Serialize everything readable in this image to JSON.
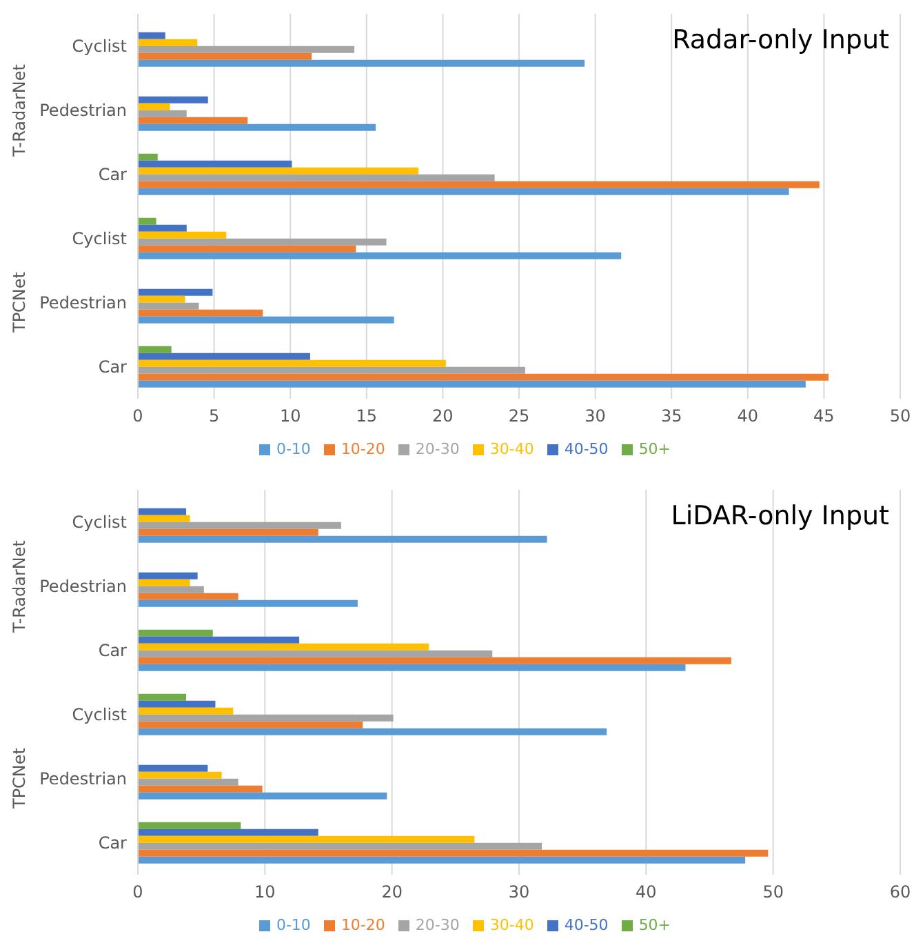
{
  "chart_data": [
    {
      "type": "bar",
      "orientation": "horizontal",
      "title": "Radar-only Input",
      "categories": [
        "Cyclist",
        "Pedestrian",
        "Car",
        "Cyclist",
        "Pedestrian",
        "Car"
      ],
      "annotations": [
        "T-RadarNet",
        "TPCNet"
      ],
      "series": [
        {
          "name": "50+",
          "color": "#70ad47",
          "values": [
            null,
            null,
            1.3,
            1.2,
            null,
            2.2
          ]
        },
        {
          "name": "40-50",
          "color": "#4472c4",
          "values": [
            1.8,
            4.6,
            10.1,
            3.2,
            4.9,
            11.3
          ]
        },
        {
          "name": "30-40",
          "color": "#ffc000",
          "values": [
            3.9,
            2.1,
            18.4,
            5.8,
            3.1,
            20.2
          ]
        },
        {
          "name": "20-30",
          "color": "#a5a5a5",
          "values": [
            14.2,
            3.2,
            23.4,
            16.3,
            4.0,
            25.4
          ]
        },
        {
          "name": "10-20",
          "color": "#ed7d31",
          "values": [
            11.4,
            7.2,
            44.7,
            14.3,
            8.2,
            45.3
          ]
        },
        {
          "name": "0-10",
          "color": "#5b9bd5",
          "values": [
            29.3,
            15.6,
            42.7,
            31.7,
            16.8,
            43.8
          ]
        }
      ],
      "xlim": [
        0,
        50
      ],
      "xticks": [
        0,
        5,
        10,
        15,
        20,
        25,
        30,
        35,
        40,
        45,
        50
      ],
      "grid": "x",
      "legend": "bottom"
    },
    {
      "type": "bar",
      "orientation": "horizontal",
      "title": "LiDAR-only Input",
      "categories": [
        "Cyclist",
        "Pedestrian",
        "Car",
        "Cyclist",
        "Pedestrian",
        "Car"
      ],
      "annotations": [
        "T-RadarNet",
        "TPCNet"
      ],
      "series": [
        {
          "name": "50+",
          "color": "#70ad47",
          "values": [
            null,
            null,
            5.9,
            3.8,
            null,
            8.1
          ]
        },
        {
          "name": "40-50",
          "color": "#4472c4",
          "values": [
            3.8,
            4.7,
            12.7,
            6.1,
            5.5,
            14.2
          ]
        },
        {
          "name": "30-40",
          "color": "#ffc000",
          "values": [
            4.1,
            4.1,
            22.9,
            7.5,
            6.6,
            26.5
          ]
        },
        {
          "name": "20-30",
          "color": "#a5a5a5",
          "values": [
            16.0,
            5.2,
            27.9,
            20.1,
            7.9,
            31.8
          ]
        },
        {
          "name": "10-20",
          "color": "#ed7d31",
          "values": [
            14.2,
            7.9,
            46.7,
            17.7,
            9.8,
            49.6
          ]
        },
        {
          "name": "0-10",
          "color": "#5b9bd5",
          "values": [
            32.2,
            17.3,
            43.1,
            36.9,
            19.6,
            47.8
          ]
        }
      ],
      "xlim": [
        0,
        60
      ],
      "xticks": [
        0,
        10,
        20,
        30,
        40,
        50,
        60
      ],
      "grid": "x",
      "legend": "bottom"
    }
  ]
}
